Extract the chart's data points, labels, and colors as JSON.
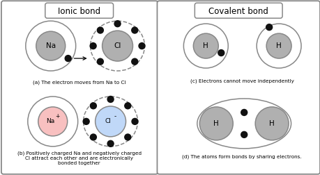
{
  "fig_width": 4.6,
  "fig_height": 2.52,
  "dpi": 100,
  "bg_color": "#ffffff",
  "border_color": "#888888",
  "title_ionic": "Ionic bond",
  "title_covalent": "Covalent bond",
  "atom_gray": "#b0b0b0",
  "atom_pink": "#f8c0c0",
  "atom_blue": "#c0d8f8",
  "electron_color": "#111111",
  "caption_a": "(a) The electron moves from Na to Cl",
  "caption_b": "(b) Positively charged Na and negatively charged\nCl attract each other and are electronically\nbonded together",
  "caption_c": "(c) Electrons cannot move independently",
  "caption_d": "(d) The atoms form bonds by sharing electrons.",
  "font_size_title": 8.5,
  "font_size_caption": 5.2,
  "font_size_label": 7.5,
  "font_size_label_small": 6.5
}
